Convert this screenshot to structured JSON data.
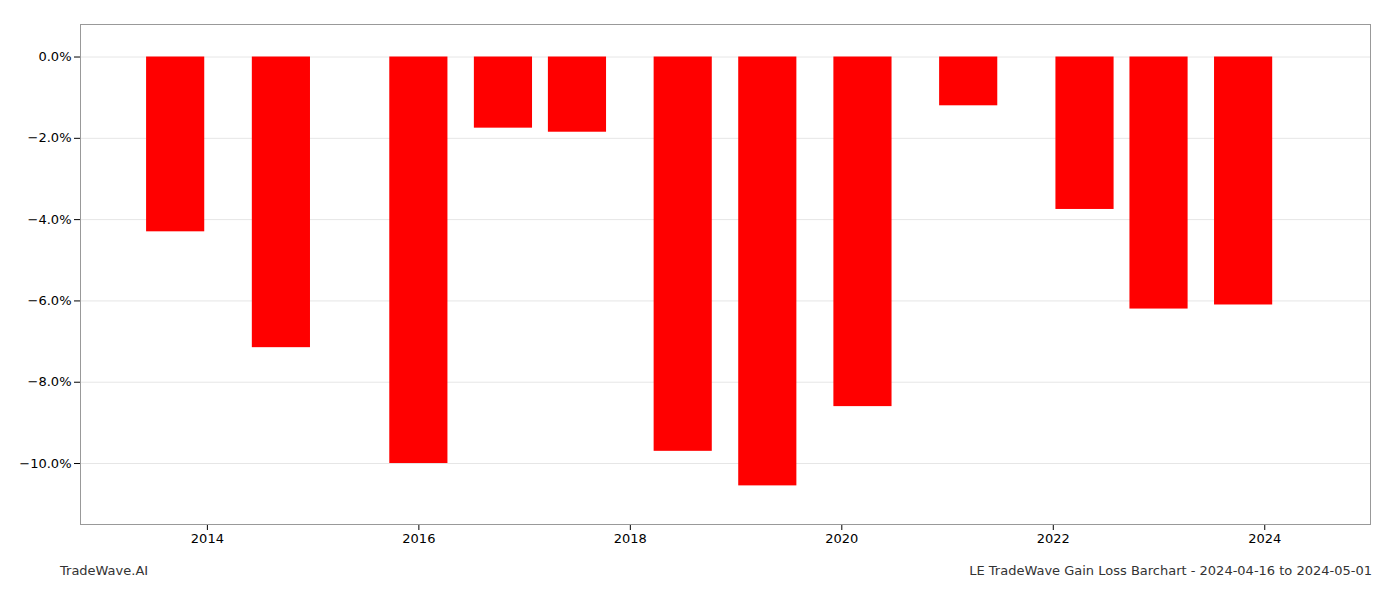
{
  "chart_data": {
    "type": "bar",
    "x": [
      2013.7,
      2014.7,
      2016.0,
      2016.8,
      2017.5,
      2018.5,
      2019.3,
      2020.2,
      2021.2,
      2022.3,
      2023.0,
      2023.8
    ],
    "values": [
      -4.3,
      -7.15,
      -10.0,
      -1.75,
      -1.85,
      -9.7,
      -10.55,
      -8.6,
      -1.2,
      -3.75,
      -6.2,
      -6.1
    ],
    "color": "#ff0000",
    "xlim": [
      2012.8,
      2025.0
    ],
    "xticks": [
      2014,
      2016,
      2018,
      2020,
      2022,
      2024
    ],
    "ylim": [
      -11.5,
      0.8
    ],
    "yticks": [
      {
        "value": 0.0,
        "label": "0.0%"
      },
      {
        "value": -2.0,
        "label": "−2.0%"
      },
      {
        "value": -4.0,
        "label": "−4.0%"
      },
      {
        "value": -6.0,
        "label": "−6.0%"
      },
      {
        "value": -8.0,
        "label": "−8.0%"
      },
      {
        "value": -10.0,
        "label": "−10.0%"
      }
    ],
    "grid": true,
    "annotations": [
      "TradeWave.AI",
      "LE TradeWave Gain Loss Barchart - 2024-04-16 to 2024-05-01"
    ]
  }
}
